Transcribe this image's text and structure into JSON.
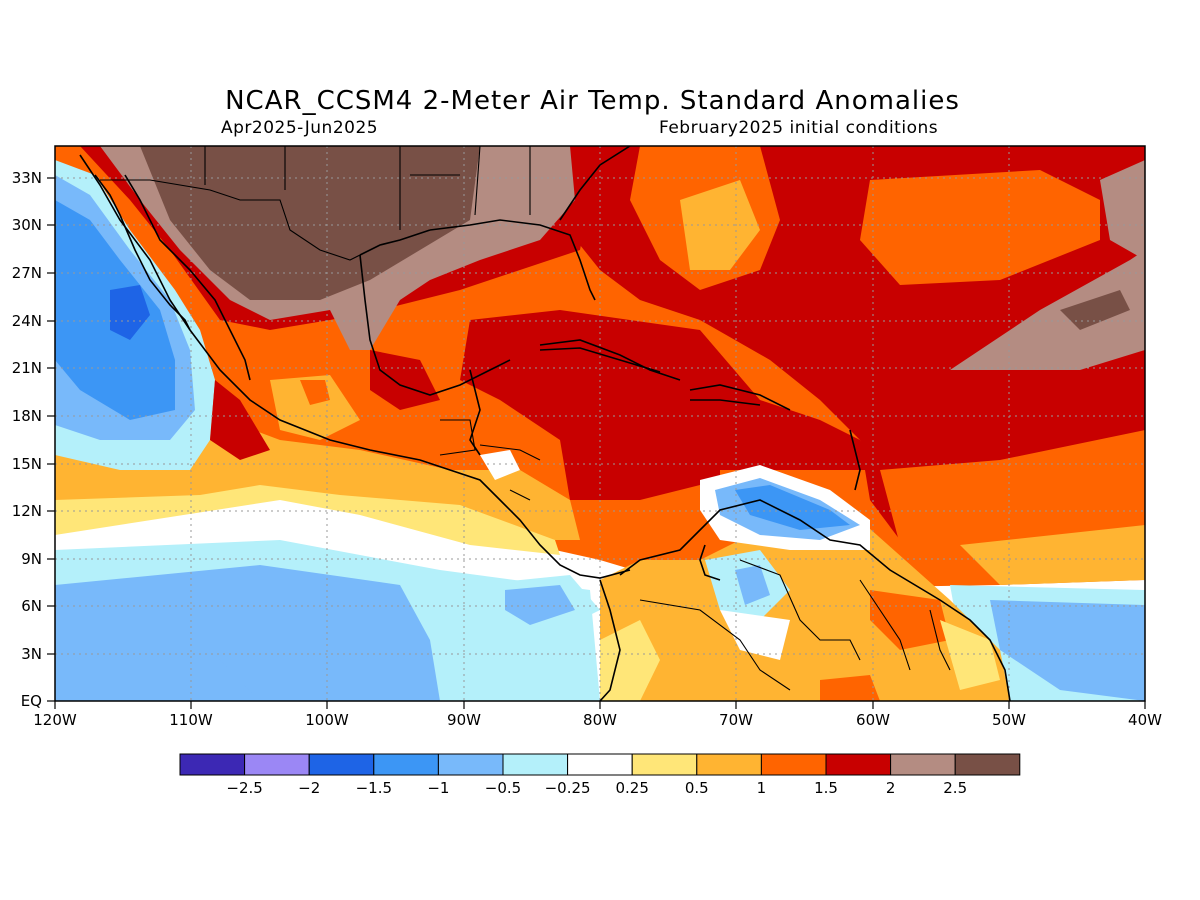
{
  "title": "NCAR_CCSM4 2-Meter Air Temp. Standard Anomalies",
  "subtitle_left": "Apr2025-Jun2025",
  "subtitle_right": "February2025 initial conditions",
  "map": {
    "lon_range": [
      -120,
      -40
    ],
    "lat_range": [
      0,
      35
    ],
    "x_ticks": [
      "120W",
      "110W",
      "100W",
      "90W",
      "80W",
      "70W",
      "60W",
      "50W",
      "40W"
    ],
    "y_ticks": [
      "EQ",
      "3N",
      "6N",
      "9N",
      "12N",
      "15N",
      "18N",
      "21N",
      "24N",
      "27N",
      "30N",
      "33N"
    ],
    "grid": "dotted",
    "variable": "2-meter air temperature standard anomaly"
  },
  "legend": {
    "labels": [
      "-2.5",
      "-2",
      "-1.5",
      "-1",
      "-0.5",
      "-0.25",
      "0.25",
      "0.5",
      "1",
      "1.5",
      "2",
      "2.5"
    ],
    "colors": [
      "#3c28b4",
      "#9b87f5",
      "#1e64e6",
      "#3c96f5",
      "#78b9fa",
      "#b4f0fa",
      "#ffffff",
      "#ffe678",
      "#ffb432",
      "#ff6400",
      "#c80000",
      "#b48c82",
      "#785046"
    ]
  }
}
